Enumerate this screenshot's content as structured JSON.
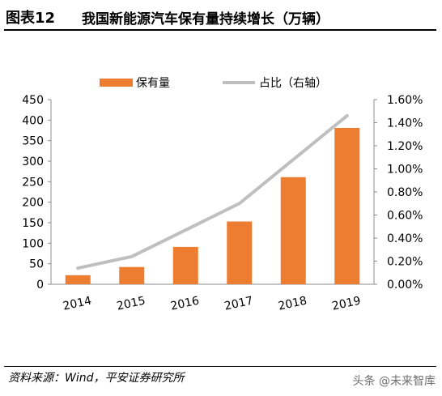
{
  "header": {
    "figure_label": "图表12",
    "title": "我国新能源汽车保有量持续增长（万辆）"
  },
  "footer": {
    "source": "资料来源：Wind，平安证券研究所",
    "watermark": "头条 @未来智库"
  },
  "colors": {
    "bar": "#ED7D31",
    "line": "#BFBFBF",
    "axis": "#8C8C8C"
  },
  "chart_data": {
    "type": "bar",
    "categories": [
      "2014",
      "2015",
      "2016",
      "2017",
      "2018",
      "2019"
    ],
    "series": [
      {
        "name": "保有量",
        "type": "bar",
        "axis": "left",
        "values": [
          22,
          42,
          91,
          153,
          261,
          381
        ]
      },
      {
        "name": "占比（右轴）",
        "type": "line",
        "axis": "right",
        "values": [
          0.14,
          0.24,
          0.47,
          0.7,
          1.08,
          1.46
        ]
      }
    ],
    "y_left": {
      "ylim": [
        0,
        450
      ],
      "ticks": [
        "0",
        "50",
        "100",
        "150",
        "200",
        "250",
        "300",
        "350",
        "400",
        "450"
      ]
    },
    "y_right": {
      "ylim": [
        0,
        1.6
      ],
      "ticks": [
        "0.00%",
        "0.20%",
        "0.40%",
        "0.60%",
        "0.80%",
        "1.00%",
        "1.20%",
        "1.40%",
        "1.60%"
      ]
    },
    "legend_position": "top",
    "grid": false
  }
}
